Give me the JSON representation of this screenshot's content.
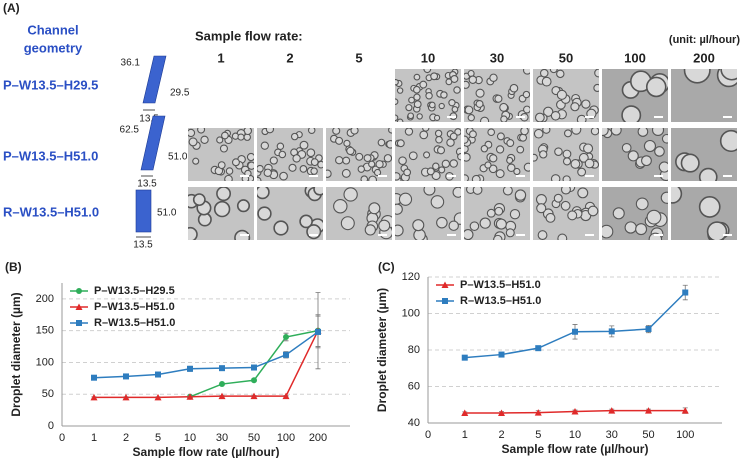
{
  "panel_a": {
    "label": "(A)",
    "geometry_title": [
      "Channel",
      "geometry"
    ],
    "flow_title": "Sample flow rate:",
    "unit": "(unit: µl/hour)",
    "flow_rates": [
      "1",
      "2",
      "5",
      "10",
      "30",
      "50",
      "100",
      "200"
    ],
    "rows": [
      {
        "name": "P–W13.5–H29.5",
        "dims": [
          "36.1",
          "29.5",
          "13.5"
        ]
      },
      {
        "name": "P–W13.5–H51.0",
        "dims": [
          "62.5",
          "51.0",
          "13.5"
        ]
      },
      {
        "name": "R–W13.5–H51.0",
        "dims": [
          "51.0",
          "13.5"
        ]
      }
    ]
  },
  "chart_data": [
    {
      "type": "line",
      "panel": "(B)",
      "x_label": "Sample flow rate (µl/hour)",
      "y_label": "Droplet diameter (µm)",
      "x_origin_label": "0",
      "categories": [
        "1",
        "2",
        "5",
        "10",
        "30",
        "50",
        "100",
        "200"
      ],
      "ylim": [
        0,
        225
      ],
      "yticks": [
        0,
        50,
        100,
        150,
        200
      ],
      "grid": true,
      "legend": "top-left",
      "series": [
        {
          "name": "P–W13.5–H29.5",
          "color": "#2fae5a",
          "marker": "circle",
          "values": [
            null,
            null,
            null,
            46,
            66,
            72,
            140,
            150
          ],
          "errors": [
            null,
            null,
            null,
            1,
            2,
            2,
            6,
            25
          ]
        },
        {
          "name": "P–W13.5–H51.0",
          "color": "#e02a2a",
          "marker": "triangle",
          "values": [
            45,
            45,
            45,
            46,
            47,
            47,
            47,
            150
          ],
          "errors": [
            1,
            1,
            1,
            1,
            1,
            1,
            1,
            60
          ]
        },
        {
          "name": "R–W13.5–H51.0",
          "color": "#2e7dbf",
          "marker": "square",
          "values": [
            76,
            78,
            81,
            90,
            91,
            92,
            112,
            148
          ],
          "errors": [
            1.5,
            1.5,
            1.5,
            4,
            3,
            2,
            5,
            25
          ]
        }
      ]
    },
    {
      "type": "line",
      "panel": "(C)",
      "x_label": "Sample flow rate (µl/hour)",
      "y_label": "Droplet diameter (µm)",
      "x_origin_label": "0",
      "categories": [
        "1",
        "2",
        "5",
        "10",
        "30",
        "50",
        "100"
      ],
      "ylim": [
        40,
        120
      ],
      "yticks": [
        40,
        60,
        80,
        100,
        120
      ],
      "grid": true,
      "legend": "top-left",
      "series": [
        {
          "name": "P–W13.5–H51.0",
          "color": "#e02a2a",
          "marker": "triangle",
          "values": [
            45.5,
            45.5,
            45.7,
            46.3,
            46.8,
            46.8,
            46.8
          ],
          "errors": [
            0.6,
            0.7,
            1,
            0.8,
            0.8,
            0.8,
            1.5
          ]
        },
        {
          "name": "R–W13.5–H51.0",
          "color": "#2e7dbf",
          "marker": "square",
          "values": [
            75.8,
            77.5,
            81,
            90,
            90.2,
            91.5,
            111.5
          ],
          "errors": [
            1,
            1,
            1,
            4,
            3,
            2,
            4
          ]
        }
      ]
    }
  ]
}
